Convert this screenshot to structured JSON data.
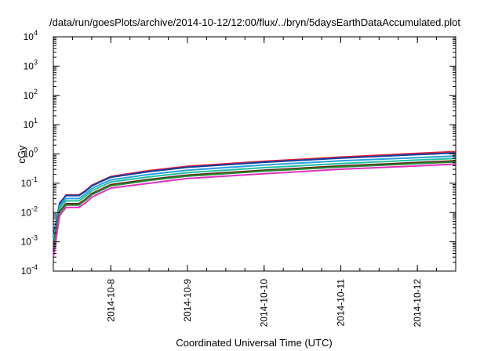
{
  "chart_data": {
    "type": "line",
    "title": "/data/run/goesPlots/archive/2014-10-12/12:00/flux/../bryn/5daysEarthDataAccumulated.plot",
    "xlabel": "Coordinated Universal Time (UTC)",
    "ylabel": "cGy",
    "y_scale": "log",
    "ylim": [
      0.0001,
      10000
    ],
    "xlim": [
      "2014-10-07 06:00",
      "2014-10-12 12:00"
    ],
    "grid": false,
    "legend": "none",
    "y_ticks": [
      {
        "value": 0.0001,
        "base": "10",
        "exp": "-4"
      },
      {
        "value": 0.001,
        "base": "10",
        "exp": "-3"
      },
      {
        "value": 0.01,
        "base": "10",
        "exp": "-2"
      },
      {
        "value": 0.1,
        "base": "10",
        "exp": "-1"
      },
      {
        "value": 1,
        "base": "10",
        "exp": "0"
      },
      {
        "value": 10,
        "base": "10",
        "exp": "1"
      },
      {
        "value": 100,
        "base": "10",
        "exp": "2"
      },
      {
        "value": 1000,
        "base": "10",
        "exp": "3"
      },
      {
        "value": 10000,
        "base": "10",
        "exp": "4"
      }
    ],
    "x_ticks": [
      {
        "value": "2014-10-08 00:00",
        "label": "2014-10-8"
      },
      {
        "value": "2014-10-09 00:00",
        "label": "2014-10-9"
      },
      {
        "value": "2014-10-10 00:00",
        "label": "2014-10-10"
      },
      {
        "value": "2014-10-11 00:00",
        "label": "2014-10-11"
      },
      {
        "value": "2014-10-12 00:00",
        "label": "2014-10-12"
      }
    ],
    "series": [
      {
        "color": "#e0203a",
        "x": [
          "2014-10-07 06:00",
          "2014-10-07 08:00",
          "2014-10-07 10:00",
          "2014-10-07 14:00",
          "2014-10-07 16:00",
          "2014-10-07 18:00",
          "2014-10-07 21:00",
          "2014-10-08 00:00",
          "2014-10-08 12:00",
          "2014-10-09 00:00",
          "2014-10-10 00:00",
          "2014-10-11 00:00",
          "2014-10-12 00:00",
          "2014-10-12 12:00"
        ],
        "values": [
          0.001,
          0.02,
          0.04,
          0.04,
          0.055,
          0.085,
          0.12,
          0.17,
          0.27,
          0.38,
          0.56,
          0.78,
          1.05,
          1.2
        ]
      },
      {
        "color": "#0d3fa0",
        "x": [
          "2014-10-07 06:00",
          "2014-10-07 08:00",
          "2014-10-07 10:00",
          "2014-10-07 14:00",
          "2014-10-07 16:00",
          "2014-10-07 18:00",
          "2014-10-07 21:00",
          "2014-10-08 00:00",
          "2014-10-08 12:00",
          "2014-10-09 00:00",
          "2014-10-10 00:00",
          "2014-10-11 00:00",
          "2014-10-12 00:00",
          "2014-10-12 12:00"
        ],
        "values": [
          0.0015,
          0.021,
          0.038,
          0.038,
          0.052,
          0.08,
          0.115,
          0.16,
          0.25,
          0.35,
          0.52,
          0.72,
          0.95,
          1.08
        ]
      },
      {
        "color": "#2aa0e0",
        "x": [
          "2014-10-07 06:00",
          "2014-10-07 08:00",
          "2014-10-07 10:00",
          "2014-10-07 14:00",
          "2014-10-07 16:00",
          "2014-10-07 18:00",
          "2014-10-07 21:00",
          "2014-10-08 00:00",
          "2014-10-08 12:00",
          "2014-10-09 00:00",
          "2014-10-10 00:00",
          "2014-10-11 00:00",
          "2014-10-12 00:00",
          "2014-10-12 12:00"
        ],
        "values": [
          0.0012,
          0.017,
          0.03,
          0.03,
          0.042,
          0.065,
          0.094,
          0.13,
          0.2,
          0.28,
          0.42,
          0.58,
          0.75,
          0.85
        ]
      },
      {
        "color": "#22c0a0",
        "x": [
          "2014-10-07 06:00",
          "2014-10-07 08:00",
          "2014-10-07 10:00",
          "2014-10-07 14:00",
          "2014-10-07 16:00",
          "2014-10-07 18:00",
          "2014-10-07 21:00",
          "2014-10-08 00:00",
          "2014-10-08 12:00",
          "2014-10-09 00:00",
          "2014-10-10 00:00",
          "2014-10-11 00:00",
          "2014-10-12 00:00",
          "2014-10-12 12:00"
        ],
        "values": [
          0.001,
          0.014,
          0.025,
          0.025,
          0.035,
          0.054,
          0.078,
          0.11,
          0.165,
          0.23,
          0.34,
          0.47,
          0.62,
          0.7
        ]
      },
      {
        "color": "#5a2a1a",
        "x": [
          "2014-10-07 06:00",
          "2014-10-07 08:00",
          "2014-10-07 10:00",
          "2014-10-07 14:00",
          "2014-10-07 16:00",
          "2014-10-07 18:00",
          "2014-10-07 21:00",
          "2014-10-08 00:00",
          "2014-10-08 12:00",
          "2014-10-09 00:00",
          "2014-10-10 00:00",
          "2014-10-11 00:00",
          "2014-10-12 00:00",
          "2014-10-12 12:00"
        ],
        "values": [
          0.0008,
          0.011,
          0.02,
          0.02,
          0.028,
          0.044,
          0.063,
          0.09,
          0.135,
          0.19,
          0.28,
          0.39,
          0.51,
          0.58
        ]
      },
      {
        "color": "#2a8a30",
        "x": [
          "2014-10-07 06:00",
          "2014-10-07 08:00",
          "2014-10-07 10:00",
          "2014-10-07 14:00",
          "2014-10-07 16:00",
          "2014-10-07 18:00",
          "2014-10-07 21:00",
          "2014-10-08 00:00",
          "2014-10-08 12:00",
          "2014-10-09 00:00",
          "2014-10-10 00:00",
          "2014-10-11 00:00",
          "2014-10-12 00:00",
          "2014-10-12 12:00"
        ],
        "values": [
          0.0007,
          0.01,
          0.018,
          0.018,
          0.026,
          0.04,
          0.058,
          0.082,
          0.125,
          0.175,
          0.26,
          0.36,
          0.47,
          0.53
        ]
      },
      {
        "color": "#e030c0",
        "x": [
          "2014-10-07 06:00",
          "2014-10-07 08:00",
          "2014-10-07 10:00",
          "2014-10-07 14:00",
          "2014-10-07 16:00",
          "2014-10-07 18:00",
          "2014-10-07 21:00",
          "2014-10-08 00:00",
          "2014-10-08 12:00",
          "2014-10-09 00:00",
          "2014-10-10 00:00",
          "2014-10-11 00:00",
          "2014-10-12 00:00",
          "2014-10-12 12:00"
        ],
        "values": [
          0.0003,
          0.008,
          0.015,
          0.015,
          0.021,
          0.033,
          0.048,
          0.068,
          0.1,
          0.145,
          0.21,
          0.3,
          0.39,
          0.45
        ]
      }
    ]
  }
}
